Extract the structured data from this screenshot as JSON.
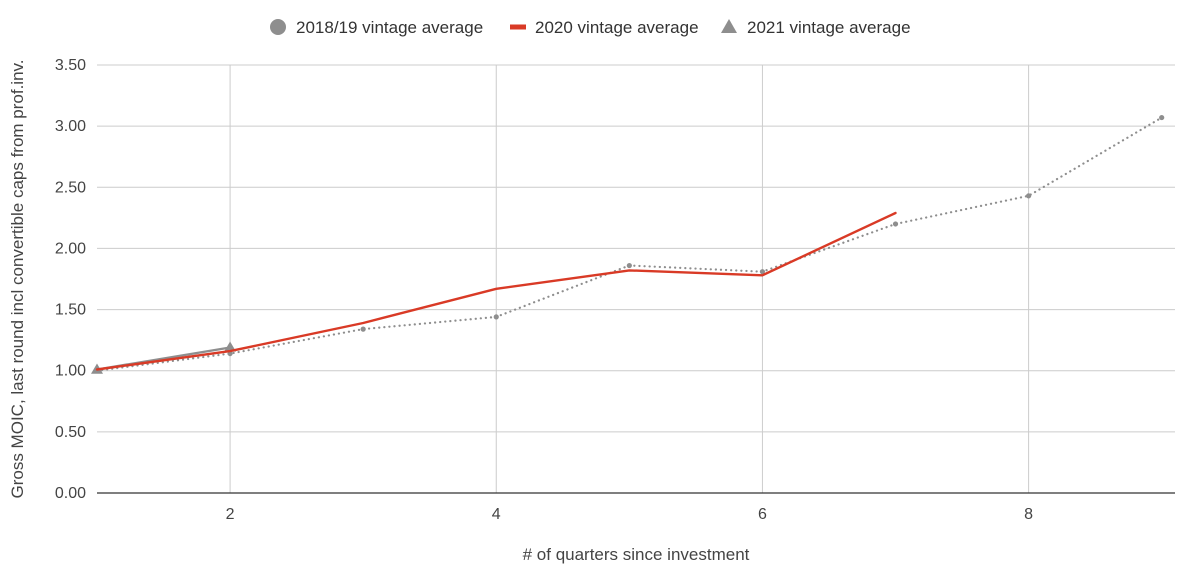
{
  "chart_data": {
    "type": "line",
    "xlabel": "# of quarters since investment",
    "ylabel": "Gross MOIC, last round incl convertible caps from prof.inv.",
    "xlim": [
      1,
      9.1
    ],
    "ylim": [
      0,
      3.5
    ],
    "x_ticks": [
      2,
      4,
      6,
      8
    ],
    "y_ticks": [
      0,
      0.5,
      1,
      1.5,
      2,
      2.5,
      3,
      3.5
    ],
    "y_tick_labels": [
      "0.00",
      "0.50",
      "1.00",
      "1.50",
      "2.00",
      "2.50",
      "3.00",
      "3.50"
    ],
    "grid": true,
    "legend_position": "top",
    "series": [
      {
        "name": "2018/19 vintage average",
        "marker": "circle",
        "line": "dotted",
        "color": "#8e8e8e",
        "x": [
          1,
          2,
          3,
          4,
          5,
          6,
          7,
          8,
          9
        ],
        "y": [
          1.0,
          1.14,
          1.34,
          1.44,
          1.86,
          1.81,
          2.2,
          2.43,
          3.07
        ]
      },
      {
        "name": "2020 vintage average",
        "marker": "none",
        "line": "solid",
        "color": "#d93a26",
        "x": [
          1,
          2,
          3,
          4,
          5,
          6,
          7
        ],
        "y": [
          1.01,
          1.16,
          1.39,
          1.67,
          1.82,
          1.78,
          2.29
        ]
      },
      {
        "name": "2021 vintage average",
        "marker": "triangle",
        "line": "solid",
        "color": "#8e8e8e",
        "x": [
          1,
          2
        ],
        "y": [
          1.01,
          1.19
        ]
      }
    ]
  }
}
